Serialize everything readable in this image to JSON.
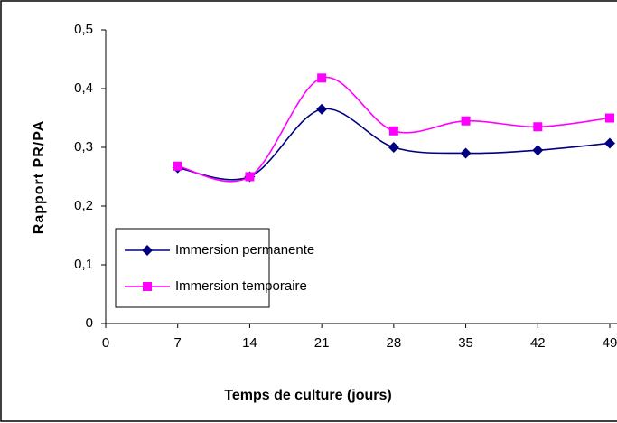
{
  "chart_data": {
    "type": "line",
    "x_label": "Temps de culture (jours)",
    "y_label": "Rapport PR/PA",
    "x": [
      7,
      14,
      21,
      28,
      35,
      42,
      49
    ],
    "series": [
      {
        "name": "Immersion permanente",
        "color": "#000080",
        "marker": "diamond",
        "values": [
          0.265,
          0.25,
          0.365,
          0.3,
          0.29,
          0.295,
          0.307
        ]
      },
      {
        "name": "Immersion temporaire",
        "color": "#ff00ff",
        "marker": "square",
        "values": [
          0.268,
          0.25,
          0.418,
          0.328,
          0.345,
          0.335,
          0.35
        ]
      }
    ],
    "xlim": [
      0,
      49
    ],
    "xticks": [
      0,
      7,
      14,
      21,
      28,
      35,
      42,
      49
    ],
    "ylim": [
      0,
      0.5
    ],
    "yticks": [
      0,
      {
        "value": 0.1,
        "label": "0,1"
      },
      {
        "value": 0.2,
        "label": "0,2"
      },
      {
        "value": 0.3,
        "label": "0,3"
      },
      {
        "value": 0.4,
        "label": "0,4"
      },
      {
        "value": 0.5,
        "label": "0,5"
      }
    ],
    "smooth": true,
    "legend": "lower left"
  }
}
